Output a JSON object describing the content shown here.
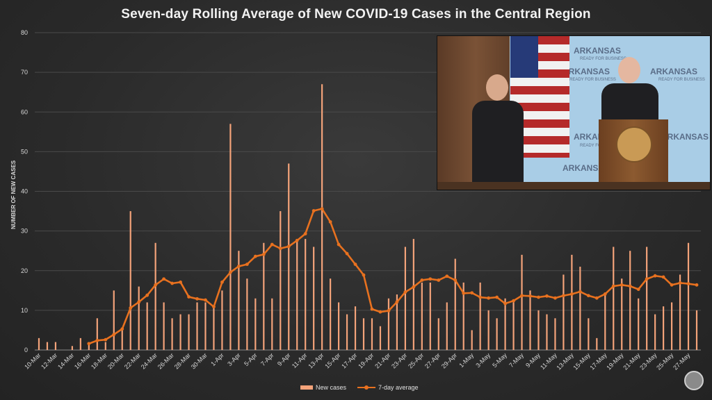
{
  "title": "Seven-day Rolling Average of New COVID-19 Cases in the Central Region",
  "chart_data": {
    "type": "bar",
    "title": "Seven-day Rolling Average of New COVID-19 Cases in the Central Region",
    "xlabel": "",
    "ylabel": "NUMBER OF NEW CASES",
    "ylim": [
      0,
      80
    ],
    "yticks": [
      0,
      10,
      20,
      30,
      40,
      50,
      60,
      70,
      80
    ],
    "grid": true,
    "legend_position": "bottom-center",
    "start_date": "10-Mar",
    "tick_labels": [
      "10-Mar",
      "12-Mar",
      "14-Mar",
      "16-Mar",
      "18-Mar",
      "20-Mar",
      "22-Mar",
      "24-Mar",
      "26-Mar",
      "28-Mar",
      "30-Mar",
      "1-Apr",
      "3-Apr",
      "5-Apr",
      "7-Apr",
      "9-Apr",
      "11-Apr",
      "13-Apr",
      "15-Apr",
      "17-Apr",
      "19-Apr",
      "21-Apr",
      "23-Apr",
      "25-Apr",
      "27-Apr",
      "29-Apr",
      "1-May",
      "3-May",
      "5-May",
      "7-May",
      "9-May",
      "11-May",
      "13-May",
      "15-May",
      "17-May",
      "19-May",
      "21-May",
      "23-May",
      "25-May",
      "27-May"
    ],
    "series": [
      {
        "name": "New cases",
        "type": "bar",
        "color": "#f4a37a",
        "values": [
          3,
          2,
          2,
          0,
          1,
          3,
          2,
          8,
          2,
          15,
          5,
          35,
          16,
          12,
          27,
          12,
          8,
          9,
          9,
          12,
          12,
          11,
          15,
          57,
          25,
          18,
          13,
          27,
          13,
          35,
          47,
          28,
          28,
          26,
          67,
          18,
          12,
          9,
          11,
          8,
          8,
          6,
          13,
          14,
          26,
          28,
          17,
          17,
          8,
          12,
          23,
          17,
          5,
          17,
          10,
          8,
          13,
          12,
          24,
          15,
          10,
          9,
          8,
          19,
          24,
          21,
          8,
          3,
          14,
          26,
          18,
          25,
          13,
          26,
          9,
          11,
          12,
          19,
          27,
          10
        ],
        "start_index": 0
      },
      {
        "name": "7-day average",
        "type": "line",
        "color": "#e8711f",
        "values": [
          1.6,
          2.4,
          2.6,
          3.9,
          5.3,
          10.6,
          12.1,
          13.8,
          16.4,
          17.9,
          16.8,
          17.1,
          13.4,
          12.9,
          12.6,
          10.9,
          17.1,
          19.6,
          21.1,
          21.6,
          23.6,
          24.1,
          26.6,
          25.6,
          26.1,
          27.6,
          29.3,
          35.1,
          35.6,
          32.3,
          26.6,
          24.3,
          21.6,
          18.9,
          10.3,
          9.6,
          9.9,
          12.1,
          14.6,
          15.9,
          17.6,
          17.9,
          17.6,
          18.6,
          17.6,
          14.3,
          14.4,
          13.3,
          13.1,
          13.3,
          11.7,
          12.4,
          13.7,
          13.6,
          13.3,
          13.6,
          13.1,
          13.7,
          14.1,
          14.7,
          13.7,
          13.1,
          14.1,
          16.1,
          16.4,
          16.1,
          15.3,
          17.9,
          18.7,
          18.4,
          16.4,
          16.9,
          16.7,
          16.4
        ],
        "start_index": 6
      }
    ]
  },
  "legend": {
    "bar_label": "New cases",
    "line_label": "7-day average"
  },
  "inset": {
    "brand_text": "ARKANSAS",
    "brand_sub": "READY FOR BUSINESS"
  }
}
